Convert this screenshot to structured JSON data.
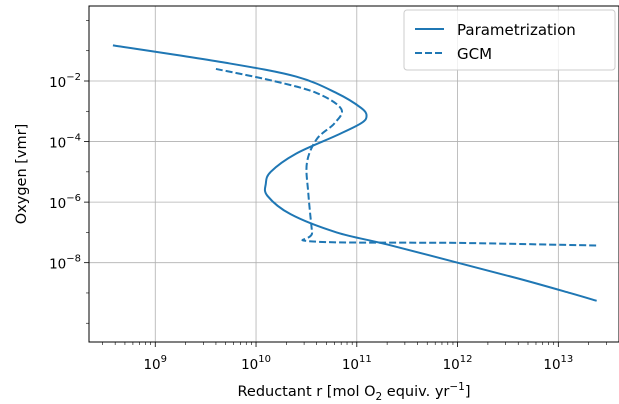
{
  "chart_data": {
    "type": "line",
    "xscale": "log",
    "yscale": "log",
    "xlim": [
      220000000.0,
      40000000000000.0
    ],
    "ylim": [
      2.4e-11,
      3.0
    ],
    "xlabel_parts": {
      "main": "Reductant r [mol O",
      "sub": "2",
      "mid": " equiv. yr",
      "sup": "−1",
      "end": "]"
    },
    "ylabel": "Oxygen [vmr]",
    "grid": true,
    "legend_position": "top-right",
    "x_ticks": [
      {
        "value": 1000000000.0,
        "base": "10",
        "exp": "9"
      },
      {
        "value": 10000000000.0,
        "base": "10",
        "exp": "10"
      },
      {
        "value": 100000000000.0,
        "base": "10",
        "exp": "11"
      },
      {
        "value": 1000000000000.0,
        "base": "10",
        "exp": "12"
      },
      {
        "value": 10000000000000.0,
        "base": "10",
        "exp": "13"
      }
    ],
    "y_ticks": [
      {
        "value": 0.01,
        "base": "10",
        "exp": "−2"
      },
      {
        "value": 0.0001,
        "base": "10",
        "exp": "−4"
      },
      {
        "value": 1e-06,
        "base": "10",
        "exp": "−6"
      },
      {
        "value": 1e-08,
        "base": "10",
        "exp": "−8"
      }
    ],
    "series": [
      {
        "name": "Parametrization",
        "style": "solid",
        "color": "#1f77b4",
        "points": [
          [
            380000000.0,
            0.15
          ],
          [
            5000000000.0,
            0.04
          ],
          [
            25000000000.0,
            0.014
          ],
          [
            63000000000.0,
            0.004
          ],
          [
            110000000000.0,
            0.0013
          ],
          [
            125000000000.0,
            0.0007
          ],
          [
            110000000000.0,
            0.0004
          ],
          [
            63000000000.0,
            0.00016
          ],
          [
            25000000000.0,
            4e-05
          ],
          [
            14000000000.0,
            1e-05
          ],
          [
            12500000000.0,
            4e-06
          ],
          [
            13000000000.0,
            1.6e-06
          ],
          [
            22000000000.0,
            4e-07
          ],
          [
            63000000000.0,
            1e-07
          ],
          [
            200000000000.0,
            4e-08
          ],
          [
            1000000000000.0,
            1e-08
          ],
          [
            4000000000000.0,
            3e-09
          ],
          [
            13000000000000.0,
            1e-09
          ],
          [
            24000000000000.0,
            5.5e-10
          ]
        ]
      },
      {
        "name": "GCM",
        "style": "dashed",
        "color": "#1f77b4",
        "points": [
          [
            4000000000.0,
            0.025
          ],
          [
            15000000000.0,
            0.01
          ],
          [
            40000000000.0,
            0.004
          ],
          [
            70000000000.0,
            0.0012
          ],
          [
            60000000000.0,
            0.0004
          ],
          [
            40000000000.0,
            0.00012
          ],
          [
            32000000000.0,
            2e-05
          ],
          [
            33000000000.0,
            2e-06
          ],
          [
            36000000000.0,
            1e-07
          ],
          [
            37000000000.0,
            5e-08
          ],
          [
            1000000000000.0,
            4.5e-08
          ],
          [
            10000000000000.0,
            3.9e-08
          ],
          [
            24000000000000.0,
            3.7e-08
          ]
        ]
      }
    ]
  }
}
